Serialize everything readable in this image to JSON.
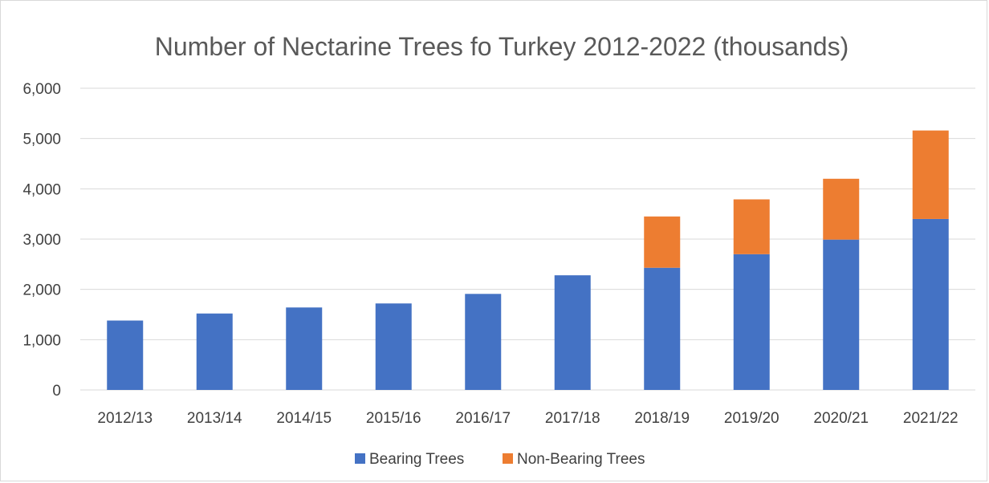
{
  "chart_data": {
    "type": "bar",
    "stacked": true,
    "title": "Number of Nectarine Trees fo Turkey 2012-2022 (thousands)",
    "xlabel": "",
    "ylabel": "",
    "categories": [
      "2012/13",
      "2013/14",
      "2014/15",
      "2015/16",
      "2016/17",
      "2017/18",
      "2018/19",
      "2019/20",
      "2020/21",
      "2021/22"
    ],
    "series": [
      {
        "name": "Bearing Trees",
        "color": "#4472c4",
        "values": [
          1380,
          1520,
          1640,
          1720,
          1910,
          2280,
          2430,
          2700,
          2990,
          3400
        ]
      },
      {
        "name": "Non-Bearing Trees",
        "color": "#ed7d31",
        "values": [
          0,
          0,
          0,
          0,
          0,
          0,
          1020,
          1090,
          1210,
          1760
        ]
      }
    ],
    "ylim": [
      0,
      6000
    ],
    "yticks": [
      0,
      1000,
      2000,
      3000,
      4000,
      5000,
      6000
    ],
    "ytick_labels": [
      "0",
      "1,000",
      "2,000",
      "3,000",
      "4,000",
      "5,000",
      "6,000"
    ],
    "grid": true,
    "gridline_color": "#d9d9d9",
    "legend_position": "bottom"
  }
}
